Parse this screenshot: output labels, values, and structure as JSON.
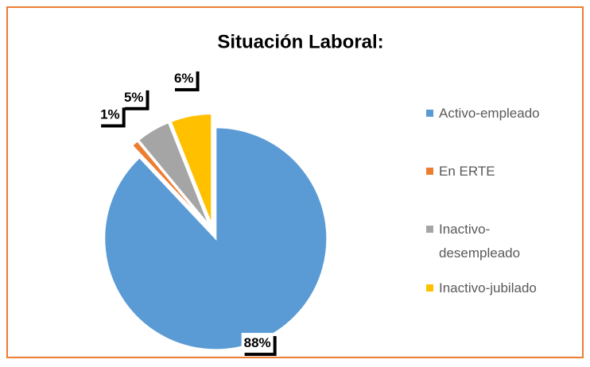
{
  "chart_data": {
    "type": "pie",
    "title": "Situación Laboral:",
    "categories": [
      "Activo-empleado",
      "En ERTE",
      "Inactivo-desempleado",
      "Inactivo-jubilado"
    ],
    "values": [
      88,
      1,
      5,
      6
    ],
    "value_labels": [
      "88%",
      "1%",
      "5%",
      "6%"
    ],
    "colors": [
      "#5b9bd5",
      "#ed7d31",
      "#a5a5a5",
      "#ffc000"
    ]
  }
}
